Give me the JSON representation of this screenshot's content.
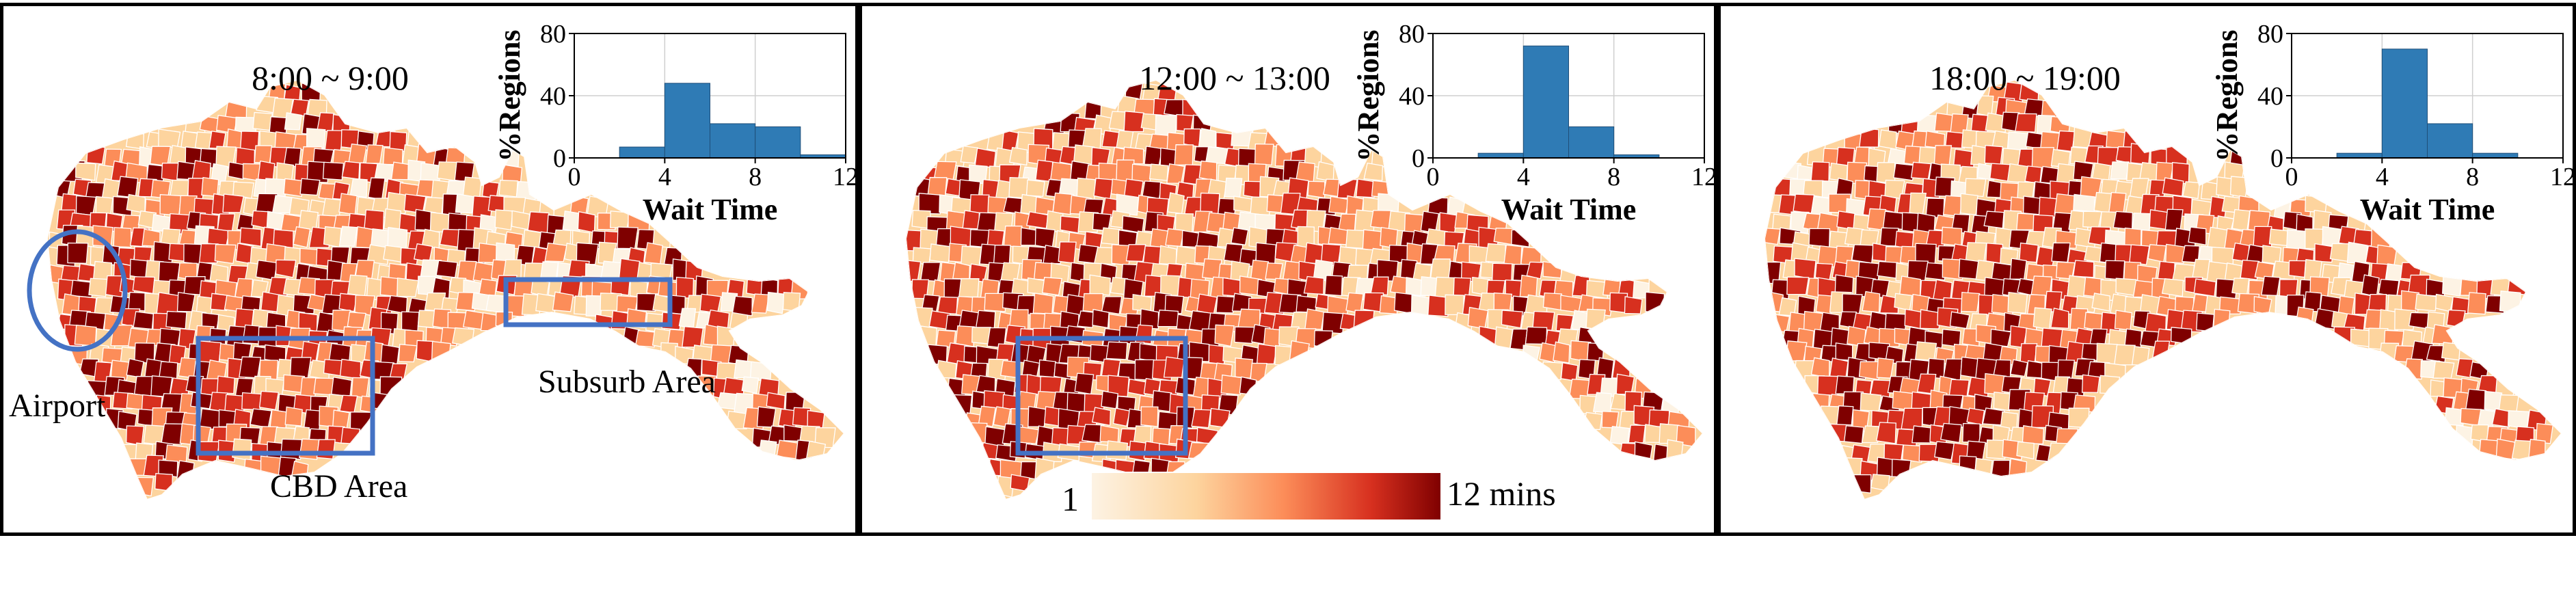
{
  "figure": {
    "panels": [
      {
        "time_label": "8:00 ~ 9:00",
        "annotations": {
          "airport": "Airport",
          "cbd": "CBD Area",
          "suburb": "Subsurb Area"
        },
        "histogram": {
          "ylabel": "%Regions",
          "xlabel": "Wait Time",
          "x_ticks": [
            "0",
            "4",
            "8",
            "12"
          ],
          "y_ticks": [
            "0",
            "40",
            "80"
          ],
          "bars": [
            {
              "bin_start": 0,
              "bin_end": 2,
              "percent": 0
            },
            {
              "bin_start": 2,
              "bin_end": 4,
              "percent": 7
            },
            {
              "bin_start": 4,
              "bin_end": 6,
              "percent": 48
            },
            {
              "bin_start": 6,
              "bin_end": 8,
              "percent": 22
            },
            {
              "bin_start": 8,
              "bin_end": 10,
              "percent": 20
            },
            {
              "bin_start": 10,
              "bin_end": 12,
              "percent": 2
            }
          ]
        },
        "darkness": 0.55
      },
      {
        "time_label": "12:00 ~ 13:00",
        "histogram": {
          "ylabel": "%Regions",
          "xlabel": "Wait Time",
          "x_ticks": [
            "0",
            "4",
            "8",
            "12"
          ],
          "y_ticks": [
            "0",
            "40",
            "80"
          ],
          "bars": [
            {
              "bin_start": 0,
              "bin_end": 2,
              "percent": 0
            },
            {
              "bin_start": 2,
              "bin_end": 4,
              "percent": 3
            },
            {
              "bin_start": 4,
              "bin_end": 6,
              "percent": 72
            },
            {
              "bin_start": 6,
              "bin_end": 8,
              "percent": 20
            },
            {
              "bin_start": 8,
              "bin_end": 10,
              "percent": 2
            },
            {
              "bin_start": 10,
              "bin_end": 12,
              "percent": 0
            }
          ]
        },
        "colorbar": {
          "min_label": "1",
          "max_label": "12 mins"
        },
        "darkness": 0.62
      },
      {
        "time_label": "18:00 ~ 19:00",
        "histogram": {
          "ylabel": "%Regions",
          "xlabel": "Wait Time",
          "x_ticks": [
            "0",
            "4",
            "8",
            "12"
          ],
          "y_ticks": [
            "0",
            "40",
            "80"
          ],
          "bars": [
            {
              "bin_start": 0,
              "bin_end": 2,
              "percent": 0
            },
            {
              "bin_start": 2,
              "bin_end": 4,
              "percent": 3
            },
            {
              "bin_start": 4,
              "bin_end": 6,
              "percent": 70
            },
            {
              "bin_start": 6,
              "bin_end": 8,
              "percent": 22
            },
            {
              "bin_start": 8,
              "bin_end": 10,
              "percent": 3
            },
            {
              "bin_start": 10,
              "bin_end": 12,
              "percent": 0
            }
          ]
        },
        "darkness": 0.6
      }
    ],
    "colors": {
      "bar": "#2f7bb5",
      "annotation": "#4472c4",
      "ramp": [
        "#fdf3e4",
        "#fdd49e",
        "#fc8d59",
        "#d7301f",
        "#7f0000"
      ]
    }
  }
}
